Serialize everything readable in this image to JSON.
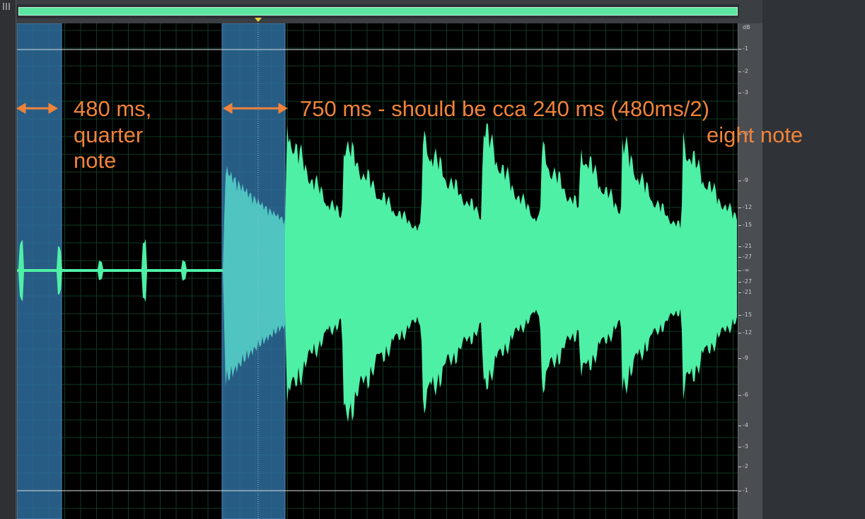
{
  "editor": {
    "annotations": {
      "quarter_label_line1": "480 ms,",
      "quarter_label_line2": "quarter",
      "quarter_label_line3": "note",
      "eighth_label": "750 ms - should be cca 240 ms (480ms/2)",
      "eighth_label_line2": "eight note"
    },
    "colors": {
      "waveform": "#4ef0a6",
      "selected_waveform": "#4fc4c0",
      "selection": "#2e6d9c",
      "annotation": "#f0833a",
      "background": "#000000"
    },
    "db_ruler": {
      "unit": "dB",
      "ticks": [
        "-1",
        "-2",
        "-3",
        "-6",
        "-9",
        "-12",
        "-15",
        "-21",
        "-27",
        "-∞",
        "-27",
        "-21",
        "-15",
        "-12",
        "-9",
        "-6",
        "-4",
        "-3",
        "-2",
        "-1"
      ]
    }
  }
}
